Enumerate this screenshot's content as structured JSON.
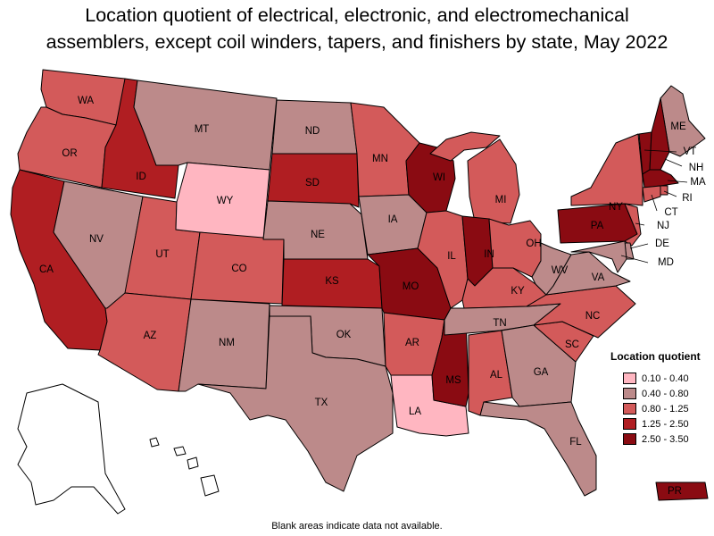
{
  "title": {
    "line1": "Location quotient of electrical, electronic, and electromechanical",
    "line2": "assemblers, except coil winders, tapers, and finishers by state, May 2022"
  },
  "legend": {
    "title": "Location quotient",
    "bins": [
      {
        "label": "0.10 - 0.40",
        "color": "#ffb6c1"
      },
      {
        "label": "0.40 - 0.80",
        "color": "#bc8a8a"
      },
      {
        "label": "0.80 - 1.25",
        "color": "#d35a5a"
      },
      {
        "label": "1.25 - 2.50",
        "color": "#b01e22"
      },
      {
        "label": "2.50 - 3.50",
        "color": "#8a0b12"
      }
    ]
  },
  "states": [
    {
      "abbr": "WA",
      "bin": 2
    },
    {
      "abbr": "OR",
      "bin": 2
    },
    {
      "abbr": "CA",
      "bin": 3
    },
    {
      "abbr": "ID",
      "bin": 3
    },
    {
      "abbr": "NV",
      "bin": 1
    },
    {
      "abbr": "UT",
      "bin": 2
    },
    {
      "abbr": "AZ",
      "bin": 2
    },
    {
      "abbr": "MT",
      "bin": 1
    },
    {
      "abbr": "WY",
      "bin": 0
    },
    {
      "abbr": "CO",
      "bin": 2
    },
    {
      "abbr": "NM",
      "bin": 1
    },
    {
      "abbr": "ND",
      "bin": 1
    },
    {
      "abbr": "SD",
      "bin": 3
    },
    {
      "abbr": "NE",
      "bin": 1
    },
    {
      "abbr": "KS",
      "bin": 3
    },
    {
      "abbr": "OK",
      "bin": 1
    },
    {
      "abbr": "TX",
      "bin": 1
    },
    {
      "abbr": "MN",
      "bin": 2
    },
    {
      "abbr": "IA",
      "bin": 1
    },
    {
      "abbr": "MO",
      "bin": 4
    },
    {
      "abbr": "AR",
      "bin": 2
    },
    {
      "abbr": "LA",
      "bin": 0
    },
    {
      "abbr": "WI",
      "bin": 4
    },
    {
      "abbr": "IL",
      "bin": 2
    },
    {
      "abbr": "MS",
      "bin": 4
    },
    {
      "abbr": "MI",
      "bin": 2
    },
    {
      "abbr": "IN",
      "bin": 4
    },
    {
      "abbr": "KY",
      "bin": 2
    },
    {
      "abbr": "TN",
      "bin": 1
    },
    {
      "abbr": "AL",
      "bin": 2
    },
    {
      "abbr": "OH",
      "bin": 2
    },
    {
      "abbr": "WV",
      "bin": 1
    },
    {
      "abbr": "GA",
      "bin": 1
    },
    {
      "abbr": "FL",
      "bin": 1
    },
    {
      "abbr": "SC",
      "bin": 2
    },
    {
      "abbr": "NC",
      "bin": 2
    },
    {
      "abbr": "VA",
      "bin": 1
    },
    {
      "abbr": "PA",
      "bin": 4
    },
    {
      "abbr": "NY",
      "bin": 2
    },
    {
      "abbr": "ME",
      "bin": 1
    },
    {
      "abbr": "VT",
      "bin": 4
    },
    {
      "abbr": "NH",
      "bin": 4
    },
    {
      "abbr": "MA",
      "bin": 4
    },
    {
      "abbr": "RI",
      "bin": 2
    },
    {
      "abbr": "CT",
      "bin": 2
    },
    {
      "abbr": "NJ",
      "bin": 2
    },
    {
      "abbr": "DE",
      "bin": 1
    },
    {
      "abbr": "MD",
      "bin": 1
    },
    {
      "abbr": "PR",
      "bin": 4
    },
    {
      "abbr": "AK",
      "bin": null
    },
    {
      "abbr": "HI",
      "bin": null
    }
  ],
  "footnote": "Blank areas indicate data not available."
}
